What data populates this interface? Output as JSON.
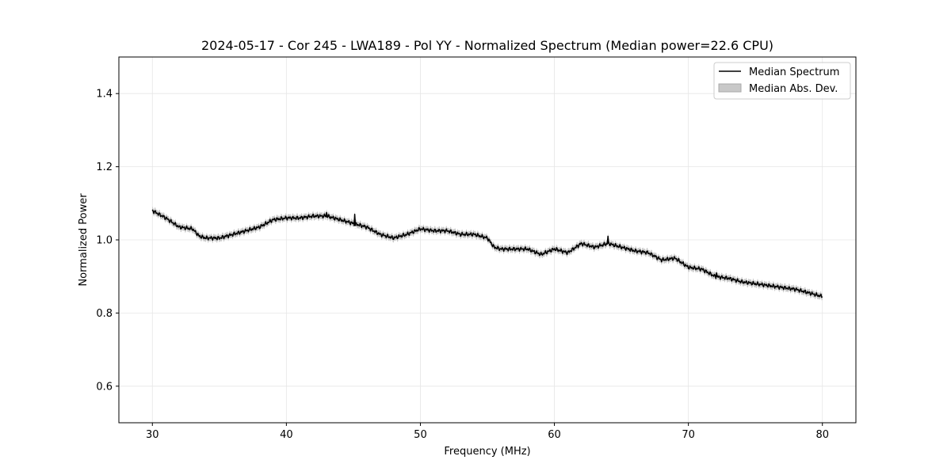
{
  "chart_data": {
    "type": "line",
    "title": "2024-05-17 - Cor 245 - LWA189 - Pol YY - Normalized Spectrum (Median power=22.6 CPU)",
    "xlabel": "Frequency (MHz)",
    "ylabel": "Normalized Power",
    "xlim": [
      27.5,
      82.5
    ],
    "ylim": [
      0.5,
      1.5
    ],
    "xticks": [
      30,
      40,
      50,
      60,
      70,
      80
    ],
    "yticks": [
      0.6,
      0.8,
      1.0,
      1.2,
      1.4
    ],
    "xtick_labels": [
      "30",
      "40",
      "50",
      "60",
      "70",
      "80"
    ],
    "ytick_labels": [
      "0.6",
      "0.8",
      "1.0",
      "1.2",
      "1.4"
    ],
    "grid": true,
    "legend_position": "top-right",
    "legend": [
      "Median Spectrum",
      "Median Abs. Dev."
    ],
    "series": [
      {
        "name": "Median Spectrum",
        "style": "line",
        "color": "#000000",
        "x": [
          30,
          31,
          32,
          33,
          33.5,
          34,
          35,
          36,
          37,
          38,
          39,
          40,
          41,
          42,
          43,
          44,
          45,
          46,
          47,
          48,
          49,
          50,
          51,
          52,
          53,
          54,
          55,
          55.5,
          56,
          57,
          58,
          59,
          60,
          61,
          62,
          63,
          64,
          65,
          66,
          67,
          68,
          69,
          70,
          71,
          72,
          73,
          74,
          75,
          76,
          77,
          78,
          79,
          80
        ],
        "values": [
          1.08,
          1.06,
          1.035,
          1.03,
          1.01,
          1.005,
          1.005,
          1.015,
          1.025,
          1.035,
          1.055,
          1.06,
          1.06,
          1.065,
          1.065,
          1.055,
          1.045,
          1.035,
          1.015,
          1.005,
          1.015,
          1.03,
          1.025,
          1.025,
          1.015,
          1.015,
          1.005,
          0.98,
          0.975,
          0.975,
          0.975,
          0.96,
          0.975,
          0.965,
          0.99,
          0.98,
          0.99,
          0.98,
          0.97,
          0.965,
          0.945,
          0.95,
          0.925,
          0.92,
          0.9,
          0.895,
          0.885,
          0.88,
          0.875,
          0.87,
          0.865,
          0.855,
          0.845
        ],
        "spikes": [
          {
            "x": 43.0,
            "y": 1.075
          },
          {
            "x": 45.1,
            "y": 1.07
          },
          {
            "x": 64.0,
            "y": 1.01
          },
          {
            "x": 72.1,
            "y": 0.91
          }
        ]
      },
      {
        "name": "Median Abs. Dev.",
        "style": "band",
        "color": "#c8c8c8",
        "half_width": 0.009
      }
    ]
  }
}
